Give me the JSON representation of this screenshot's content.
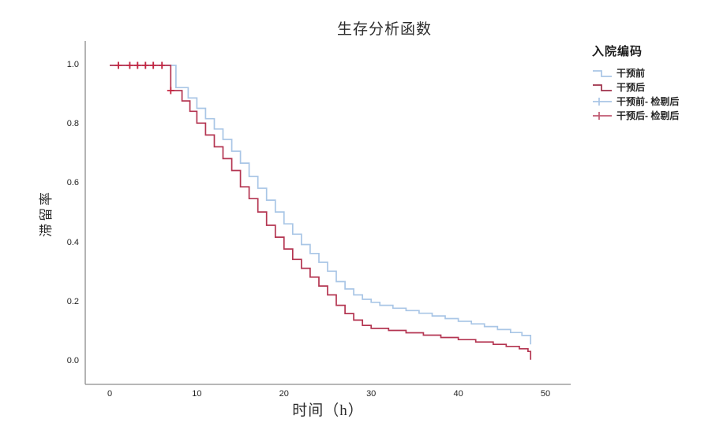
{
  "title": "生存分析函数",
  "legend": {
    "title": "入院编码",
    "items": [
      {
        "label": "干预前",
        "symbol": "step",
        "color": "#a9c6e6"
      },
      {
        "label": "干预后",
        "symbol": "step",
        "color": "#9e3049"
      },
      {
        "label": "干预前- 检剔后",
        "symbol": "plus",
        "color": "#a9c6e6"
      },
      {
        "label": "干预后- 检剔后",
        "symbol": "plus",
        "color": "#c05a72"
      }
    ]
  },
  "colors": {
    "axis": "#8c8c8c",
    "curve_blue": "#a9c6e6",
    "curve_red": "#b43551",
    "censor_red": "#c52540",
    "text": "#1f1f1f"
  },
  "chart_data": {
    "type": "line",
    "variant": "kaplan_meier_step",
    "title": "生存分析函数",
    "xlabel": "时间（h）",
    "ylabel": "滞留率",
    "legend_title": "入院编码",
    "grid": false,
    "legend_position": "right",
    "xticks": [
      0,
      10,
      20,
      30,
      40,
      50
    ],
    "ytick_labels": [
      "0.0",
      "0.2",
      "0.4",
      "0.6",
      "0.8",
      "1.0"
    ],
    "xlim": [
      -2.8,
      52.9
    ],
    "ylim": [
      -0.08,
      1.08
    ],
    "series": [
      {
        "name": "干预前",
        "color": "#a9c6e6",
        "points": [
          [
            0,
            1.0
          ],
          [
            7.6,
            0.925
          ],
          [
            9,
            0.89
          ],
          [
            10,
            0.855
          ],
          [
            11,
            0.82
          ],
          [
            12,
            0.785
          ],
          [
            13,
            0.75
          ],
          [
            14,
            0.71
          ],
          [
            15,
            0.67
          ],
          [
            16,
            0.625
          ],
          [
            17,
            0.585
          ],
          [
            18,
            0.545
          ],
          [
            19,
            0.505
          ],
          [
            20,
            0.465
          ],
          [
            21,
            0.43
          ],
          [
            22,
            0.395
          ],
          [
            23,
            0.365
          ],
          [
            24,
            0.335
          ],
          [
            25,
            0.305
          ],
          [
            26,
            0.27
          ],
          [
            27,
            0.245
          ],
          [
            28,
            0.225
          ],
          [
            29,
            0.21
          ],
          [
            30,
            0.2
          ],
          [
            31,
            0.19
          ],
          [
            32.5,
            0.18
          ],
          [
            34,
            0.172
          ],
          [
            35.5,
            0.163
          ],
          [
            37,
            0.154
          ],
          [
            38.5,
            0.145
          ],
          [
            40,
            0.136
          ],
          [
            41.5,
            0.127
          ],
          [
            43,
            0.118
          ],
          [
            44.5,
            0.108
          ],
          [
            46,
            0.098
          ],
          [
            47.3,
            0.088
          ],
          [
            48.3,
            0.058
          ]
        ]
      },
      {
        "name": "干预后",
        "color": "#b43551",
        "points": [
          [
            0,
            1.0
          ],
          [
            7,
            0.915
          ],
          [
            8.3,
            0.88
          ],
          [
            9.2,
            0.845
          ],
          [
            10,
            0.805
          ],
          [
            11,
            0.765
          ],
          [
            12,
            0.725
          ],
          [
            13,
            0.685
          ],
          [
            14,
            0.645
          ],
          [
            15,
            0.59
          ],
          [
            16,
            0.55
          ],
          [
            17,
            0.505
          ],
          [
            18,
            0.46
          ],
          [
            19,
            0.42
          ],
          [
            20,
            0.38
          ],
          [
            21,
            0.345
          ],
          [
            22,
            0.315
          ],
          [
            23,
            0.285
          ],
          [
            24,
            0.255
          ],
          [
            25,
            0.225
          ],
          [
            26,
            0.19
          ],
          [
            27,
            0.162
          ],
          [
            28,
            0.14
          ],
          [
            29,
            0.122
          ],
          [
            30,
            0.112
          ],
          [
            32,
            0.105
          ],
          [
            34,
            0.097
          ],
          [
            36,
            0.089
          ],
          [
            38,
            0.081
          ],
          [
            40,
            0.074
          ],
          [
            42,
            0.066
          ],
          [
            44,
            0.058
          ],
          [
            45.5,
            0.051
          ],
          [
            47,
            0.043
          ],
          [
            48,
            0.034
          ],
          [
            48.3,
            0.006
          ]
        ]
      }
    ],
    "censored": [
      {
        "name": "干预前- 检剔后",
        "color": "#a9c6e6",
        "points": [
          [
            1,
            1
          ],
          [
            2.3,
            1
          ],
          [
            3.2,
            1
          ],
          [
            4.1,
            1
          ],
          [
            5,
            1
          ],
          [
            6,
            1
          ]
        ]
      },
      {
        "name": "干预后- 检剔后",
        "color": "#c52540",
        "points": [
          [
            1,
            1
          ],
          [
            2.3,
            1
          ],
          [
            3.2,
            1
          ],
          [
            4.1,
            1
          ],
          [
            5,
            1
          ],
          [
            6,
            1
          ],
          [
            7,
            0.915
          ]
        ]
      }
    ]
  }
}
